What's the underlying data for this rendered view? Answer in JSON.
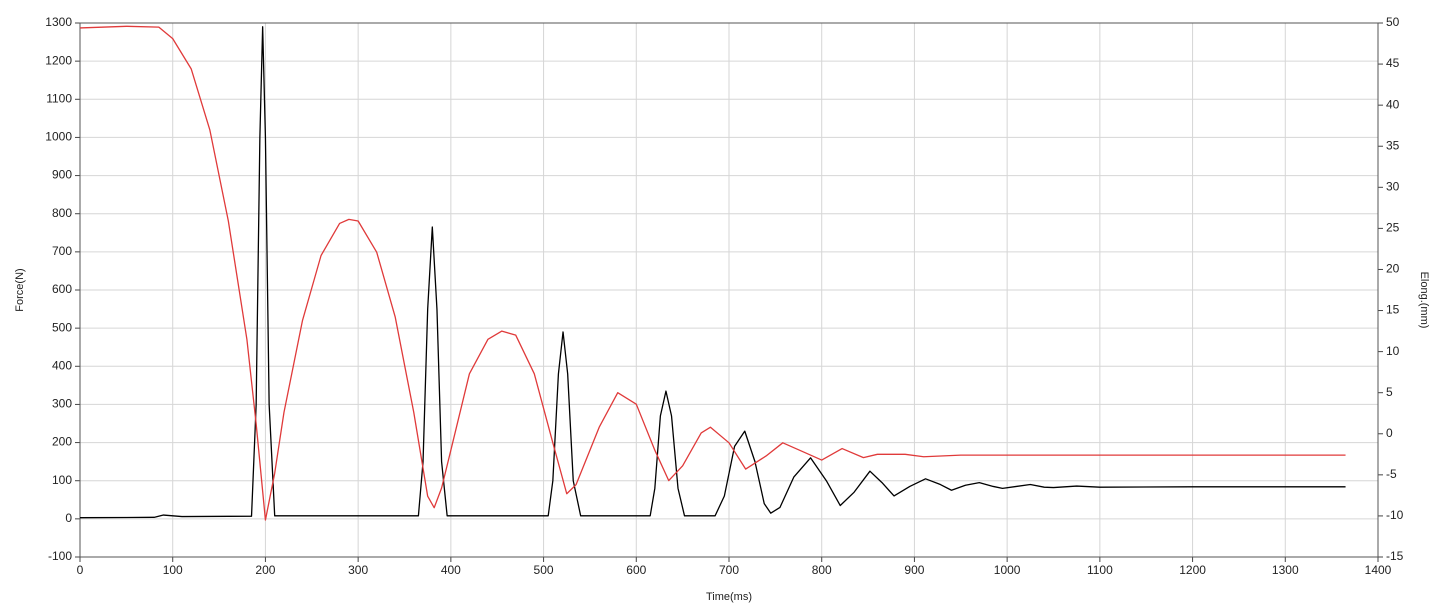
{
  "chart_data": {
    "type": "line",
    "x_label": "Time(ms)",
    "y_label": "Force(N)",
    "y2_label": "Elong.(mm)",
    "xlim": [
      0,
      1400
    ],
    "xticks": [
      0,
      100,
      200,
      300,
      400,
      500,
      600,
      700,
      800,
      900,
      1000,
      1100,
      1200,
      1300,
      1400
    ],
    "ylim": [
      -100,
      1300
    ],
    "yticks": [
      -100,
      0,
      100,
      200,
      300,
      400,
      500,
      600,
      700,
      800,
      900,
      1000,
      1100,
      1200,
      1300
    ],
    "y2lim": [
      -15,
      50
    ],
    "y2ticks": [
      -15,
      -10,
      -5,
      0,
      5,
      10,
      15,
      20,
      25,
      30,
      35,
      40,
      45,
      50
    ],
    "grid": true,
    "series": [
      {
        "color": "#000000",
        "x": [
          0,
          80,
          90,
          100,
          110,
          185,
          190,
          194,
          197,
          200,
          204,
          210,
          365,
          370,
          375,
          380,
          385,
          390,
          396,
          505,
          510,
          516,
          521,
          526,
          532,
          540,
          615,
          620,
          626,
          632,
          638,
          645,
          652,
          685,
          695,
          706,
          717,
          728,
          738,
          745,
          755,
          770,
          788,
          805,
          820,
          835,
          852,
          865,
          878,
          895,
          912,
          928,
          940,
          955,
          970,
          985,
          995,
          1010,
          1025,
          1040,
          1050,
          1075,
          1100,
          1200,
          1365
        ],
        "values": [
          3,
          4,
          10,
          8,
          6,
          7,
          300,
          1000,
          1290,
          1000,
          300,
          8,
          8,
          150,
          550,
          765,
          550,
          150,
          8,
          8,
          100,
          380,
          490,
          380,
          100,
          8,
          8,
          80,
          270,
          335,
          270,
          80,
          8,
          8,
          60,
          190,
          230,
          150,
          40,
          15,
          30,
          110,
          160,
          100,
          35,
          70,
          125,
          95,
          60,
          85,
          105,
          90,
          75,
          88,
          95,
          85,
          80,
          85,
          90,
          83,
          82,
          86,
          83,
          84,
          84
        ]
      },
      {
        "color": "#e03a3a",
        "axis": "y2",
        "x": [
          0,
          50,
          85,
          100,
          120,
          140,
          160,
          180,
          190,
          200,
          210,
          220,
          240,
          260,
          280,
          290,
          300,
          320,
          340,
          360,
          375,
          382,
          390,
          400,
          420,
          440,
          455,
          470,
          490,
          510,
          525,
          535,
          560,
          580,
          600,
          620,
          635,
          650,
          670,
          680,
          700,
          718,
          740,
          758,
          780,
          800,
          822,
          845,
          860,
          890,
          910,
          950,
          1000,
          1100,
          1365
        ],
        "values": [
          49.4,
          49.6,
          49.5,
          48.1,
          44.4,
          37.0,
          25.9,
          11.5,
          1.2,
          -10.5,
          -4.8,
          2.6,
          13.8,
          21.7,
          25.6,
          26.1,
          25.9,
          22.1,
          14.2,
          2.6,
          -7.6,
          -9.0,
          -6.6,
          -2.0,
          7.3,
          11.5,
          12.5,
          12.0,
          7.3,
          -1.1,
          -7.3,
          -6.2,
          0.8,
          5.0,
          3.6,
          -2.0,
          -5.7,
          -3.9,
          0.1,
          0.8,
          -1.1,
          -4.3,
          -2.7,
          -1.1,
          -2.2,
          -3.2,
          -1.8,
          -2.9,
          -2.5,
          -2.5,
          -2.8,
          -2.6,
          -2.6,
          -2.6,
          -2.6
        ]
      }
    ]
  }
}
